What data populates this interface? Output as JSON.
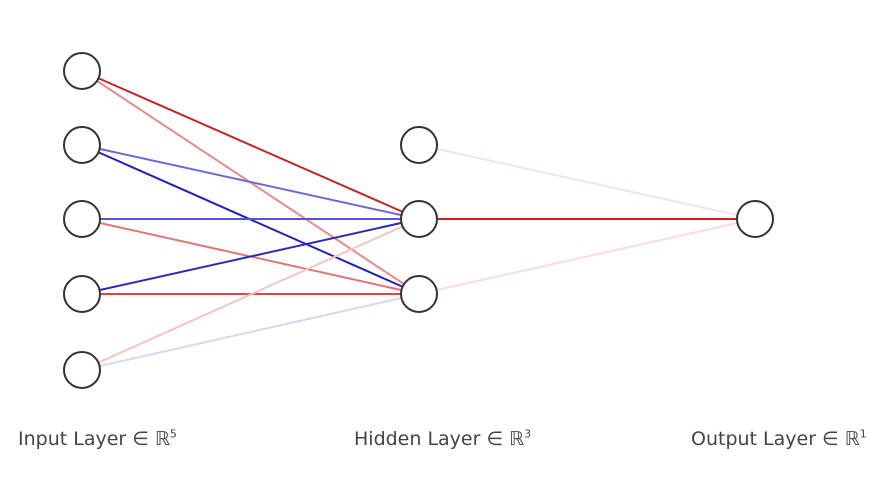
{
  "diagram": {
    "labels": {
      "input": {
        "text": "Input Layer ∈ ℝ",
        "sup": "5"
      },
      "hidden": {
        "text": "Hidden Layer ∈ ℝ",
        "sup": "3"
      },
      "output": {
        "text": "Output Layer ∈ ℝ",
        "sup": "1"
      }
    },
    "layers": [
      {
        "name": "input",
        "size": 5
      },
      {
        "name": "hidden",
        "size": 3
      },
      {
        "name": "output",
        "size": 1
      }
    ],
    "connections": [
      {
        "from": "input-1",
        "to": "hidden-2",
        "color": "#c0262a"
      },
      {
        "from": "input-1",
        "to": "hidden-3",
        "color": "#e88a8a"
      },
      {
        "from": "input-2",
        "to": "hidden-2",
        "color": "#6868d8"
      },
      {
        "from": "input-2",
        "to": "hidden-3",
        "color": "#2323b0"
      },
      {
        "from": "input-3",
        "to": "hidden-2",
        "color": "#5555d0"
      },
      {
        "from": "input-3",
        "to": "hidden-3",
        "color": "#e07575"
      },
      {
        "from": "input-4",
        "to": "hidden-2",
        "color": "#2a2ab5"
      },
      {
        "from": "input-4",
        "to": "hidden-3",
        "color": "#d84848"
      },
      {
        "from": "input-5",
        "to": "hidden-2",
        "color": "#f4c4c4"
      },
      {
        "from": "input-5",
        "to": "hidden-3",
        "color": "#d8d8f4"
      },
      {
        "from": "hidden-1",
        "to": "output-1",
        "color": "#e6e6f8"
      },
      {
        "from": "hidden-2",
        "to": "output-1",
        "color": "#c0262a"
      },
      {
        "from": "hidden-3",
        "to": "output-1",
        "color": "#fadcdc"
      }
    ]
  }
}
